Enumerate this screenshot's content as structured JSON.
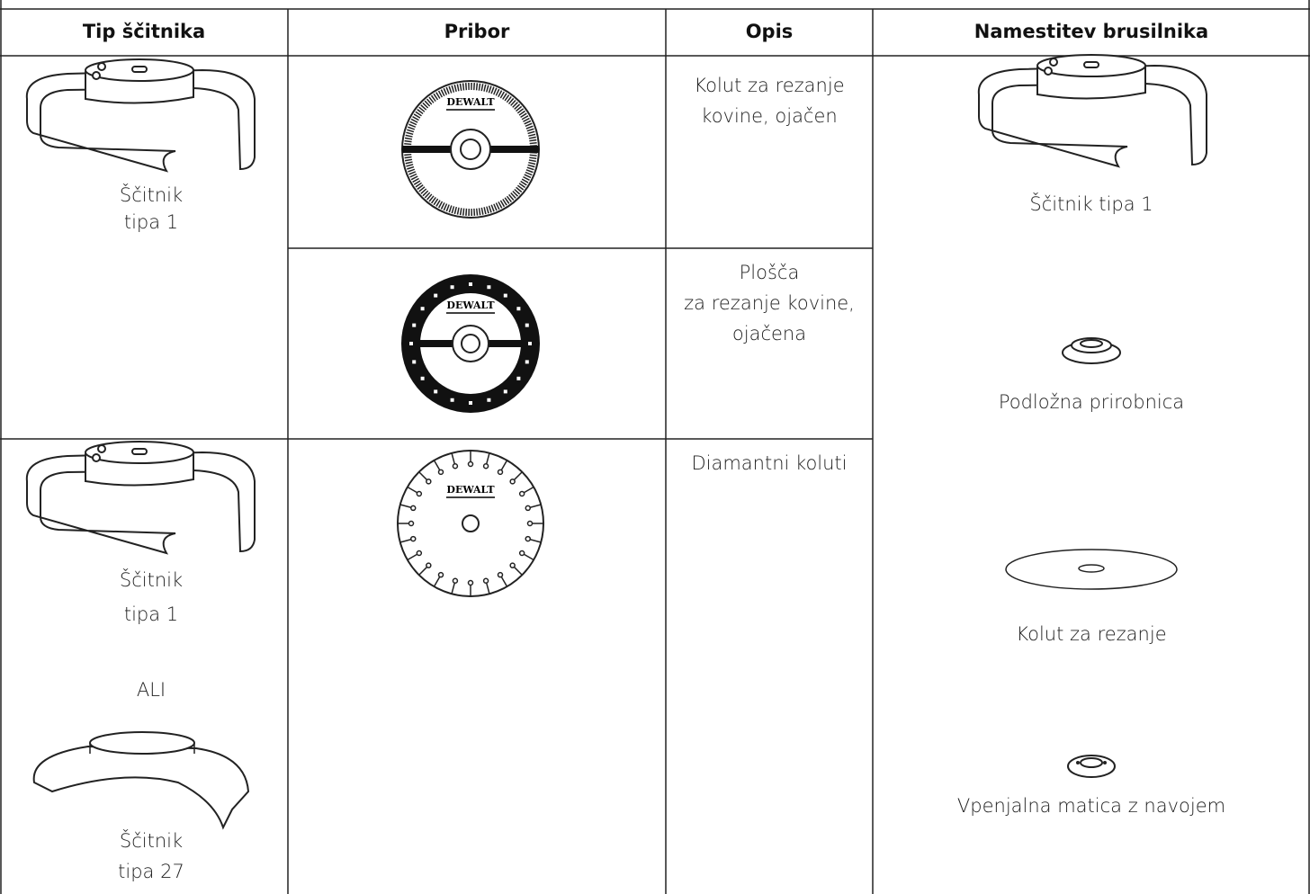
{
  "table": {
    "headers": [
      "Tip ščitnika",
      "Pribor",
      "Opis",
      "Namestitev brusilnika"
    ],
    "guards": [
      {
        "lines": [
          "Ščitnik",
          "tipa 1"
        ]
      },
      {
        "lines": [
          "Ščitnik",
          "tipa 1"
        ],
        "separator": "ALI",
        "alt_lines": [
          "Ščitnik",
          "tipa 27"
        ]
      }
    ],
    "accessories": [
      {
        "logo": "DEWALT",
        "description": [
          "Kolut za rezanje",
          "kovine, ojačen"
        ]
      },
      {
        "logo": "DEWALT",
        "description": [
          "Plošča",
          "za rezanje kovine,",
          "ojačena"
        ]
      },
      {
        "logo": "DEWALT",
        "description": [
          "Diamantni koluti"
        ]
      }
    ],
    "assembly": [
      "Ščitnik tipa 1",
      "Podložna prirobnica",
      "Kolut za rezanje",
      "Vpenjalna matica z navojem"
    ]
  }
}
